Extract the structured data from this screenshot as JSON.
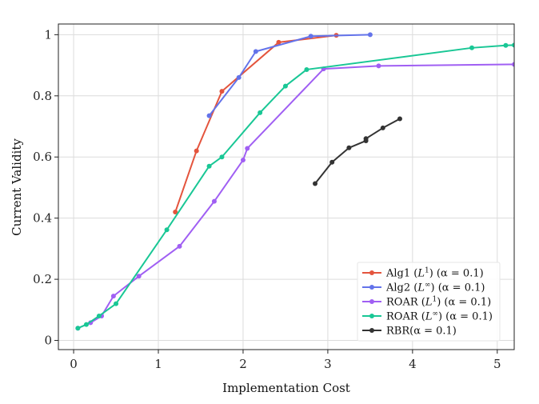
{
  "chart_data": {
    "type": "line",
    "title": "",
    "xlabel": "Implementation Cost",
    "ylabel": "Current Validity",
    "xlim": [
      -0.18,
      5.2
    ],
    "ylim": [
      -0.03,
      1.035
    ],
    "xticks": [
      0,
      1,
      2,
      3,
      4,
      5
    ],
    "xtick_labels": [
      "0",
      "1",
      "2",
      "3",
      "4",
      "5"
    ],
    "yticks": [
      0,
      0.2,
      0.4,
      0.6,
      0.8,
      1.0
    ],
    "ytick_labels": [
      "0",
      "0.2",
      "0.4",
      "0.6",
      "0.8",
      "1"
    ],
    "grid": true,
    "legend_position": "bottom-right",
    "series": [
      {
        "name": "Alg1 (L¹) (α = 0.1)",
        "color": "#e4543d",
        "x": [
          1.2,
          1.45,
          1.75,
          2.42,
          3.1
        ],
        "y": [
          0.42,
          0.62,
          0.815,
          0.975,
          0.998
        ]
      },
      {
        "name": "Alg2 (L∞) (α = 0.1)",
        "color": "#6373ea",
        "x": [
          1.6,
          1.95,
          2.15,
          2.8,
          3.5
        ],
        "y": [
          0.735,
          0.86,
          0.945,
          0.995,
          1.0
        ]
      },
      {
        "name": "ROAR (L¹) (α = 0.1)",
        "color": "#a05ff3",
        "x": [
          0.05,
          0.2,
          0.33,
          0.47,
          0.77,
          1.25,
          1.66,
          2.0,
          2.05,
          2.95,
          3.6,
          5.2
        ],
        "y": [
          0.04,
          0.058,
          0.08,
          0.145,
          0.21,
          0.308,
          0.455,
          0.59,
          0.628,
          0.888,
          0.898,
          0.903
        ]
      },
      {
        "name": "ROAR (L∞) (α = 0.1)",
        "color": "#19c795",
        "x": [
          0.05,
          0.15,
          0.3,
          0.5,
          1.1,
          1.6,
          1.75,
          2.2,
          2.5,
          2.75,
          4.7,
          5.1,
          5.2
        ],
        "y": [
          0.04,
          0.052,
          0.08,
          0.12,
          0.362,
          0.57,
          0.6,
          0.745,
          0.832,
          0.886,
          0.957,
          0.965,
          0.966
        ]
      },
      {
        "name": "RBR(α = 0.1)",
        "color": "#333333",
        "x": [
          2.85,
          3.05,
          3.25,
          3.45,
          3.45,
          3.65,
          3.85
        ],
        "y": [
          0.513,
          0.583,
          0.63,
          0.653,
          0.66,
          0.695,
          0.725
        ]
      }
    ]
  },
  "legend": {
    "items": [
      {
        "base": "Alg1 (",
        "var": "L",
        "sup": "1",
        "rest": ") (α = 0.1)"
      },
      {
        "base": "Alg2 (",
        "var": "L",
        "sup": "∞",
        "rest": ") (α = 0.1)"
      },
      {
        "base": "ROAR (",
        "var": "L",
        "sup": "1",
        "rest": ") (α = 0.1)"
      },
      {
        "base": "ROAR (",
        "var": "L",
        "sup": "∞",
        "rest": ") (α = 0.1)"
      },
      {
        "base": "RBR(α = 0.1)",
        "var": "",
        "sup": "",
        "rest": ""
      }
    ]
  }
}
